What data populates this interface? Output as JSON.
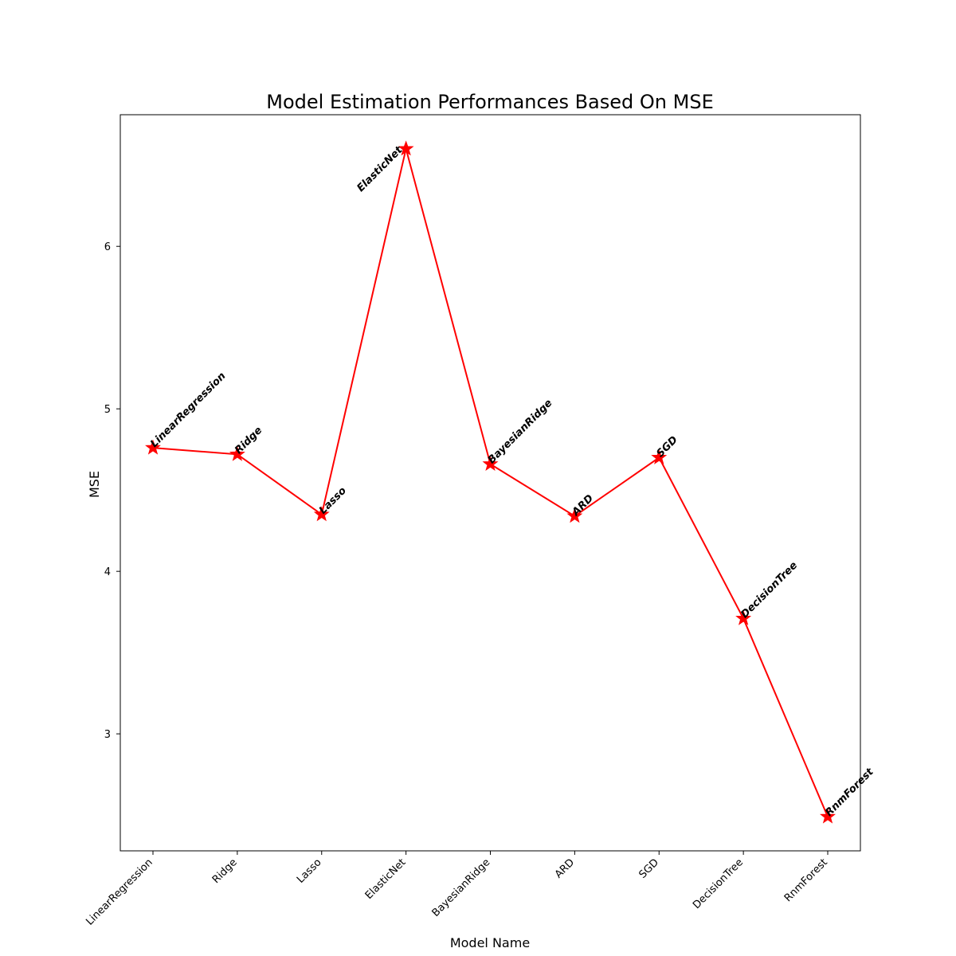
{
  "chart_data": {
    "type": "line",
    "title": "Model Estimation Performances Based On MSE",
    "xlabel": "Model Name",
    "ylabel": "MSE",
    "categories": [
      "LinearRegression",
      "Ridge",
      "Lasso",
      "ElasticNet",
      "BayesianRidge",
      "ARD",
      "SGD",
      "DecisionTree",
      "RnmForest"
    ],
    "values": [
      4.76,
      4.72,
      4.35,
      6.6,
      4.66,
      4.34,
      4.7,
      3.71,
      2.49
    ],
    "point_labels": [
      "LinearRegression",
      "Ridge",
      "Lasso",
      "ElasticNet",
      "BayesianRidge",
      "ARD",
      "SGD",
      "DecisionTree",
      "RnmForest"
    ],
    "yticks": [
      3,
      4,
      5,
      6
    ],
    "ytick_labels": [
      "3",
      "4",
      "5",
      "6"
    ],
    "ylim": [
      2.28,
      6.81
    ],
    "grid": false,
    "legend": false,
    "line_color": "#ff0000",
    "marker": "star",
    "marker_color": "#ff0000"
  }
}
